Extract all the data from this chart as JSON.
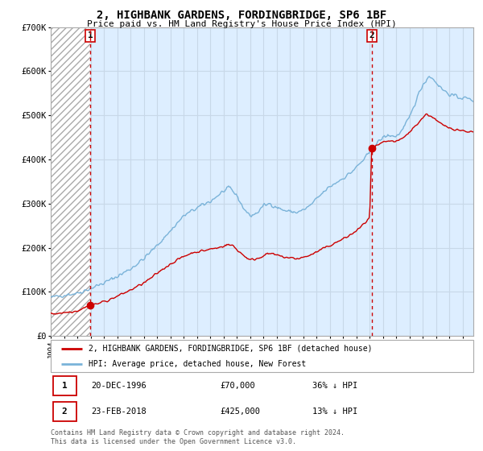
{
  "title": "2, HIGHBANK GARDENS, FORDINGBRIDGE, SP6 1BF",
  "subtitle": "Price paid vs. HM Land Registry's House Price Index (HPI)",
  "legend_line1": "2, HIGHBANK GARDENS, FORDINGBRIDGE, SP6 1BF (detached house)",
  "legend_line2": "HPI: Average price, detached house, New Forest",
  "transaction1_label": "1",
  "transaction1_date": "20-DEC-1996",
  "transaction1_price": "£70,000",
  "transaction1_info": "36% ↓ HPI",
  "transaction2_label": "2",
  "transaction2_date": "23-FEB-2018",
  "transaction2_price": "£425,000",
  "transaction2_info": "13% ↓ HPI",
  "footer": "Contains HM Land Registry data © Crown copyright and database right 2024.\nThis data is licensed under the Open Government Licence v3.0.",
  "hpi_color": "#7ab3d9",
  "price_color": "#cc0000",
  "marker_color": "#cc0000",
  "vline_color": "#cc0000",
  "ylim": [
    0,
    700000
  ],
  "yticks": [
    0,
    100000,
    200000,
    300000,
    400000,
    500000,
    600000,
    700000
  ],
  "ytick_labels": [
    "£0",
    "£100K",
    "£200K",
    "£300K",
    "£400K",
    "£500K",
    "£600K",
    "£700K"
  ],
  "transaction1_x": 1996.97,
  "transaction1_y": 70000,
  "transaction2_x": 2018.15,
  "transaction2_y": 425000,
  "xmin": 1994.0,
  "xmax": 2025.8,
  "hatch_xmin": 1994.0,
  "hatch_xmax": 1996.97,
  "background_color": "#ffffff",
  "grid_color": "#c8d8e8",
  "plot_bg_color": "#ddeeff"
}
